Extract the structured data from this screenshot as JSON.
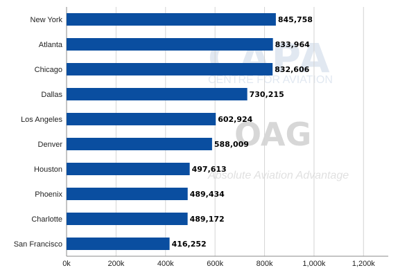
{
  "watermark": {
    "capa_logo_text": "CAPA",
    "capa_tagline": "CENTRE FOR AVIATION",
    "oag_logo_text": "OAG",
    "oag_tagline": "Absolute Aviation Advantage",
    "color": "#c9d6e6"
  },
  "chart_data": {
    "type": "bar",
    "orientation": "horizontal",
    "categories": [
      "New York",
      "Atlanta",
      "Chicago",
      "Dallas",
      "Los Angeles",
      "Denver",
      "Houston",
      "Phoenix",
      "Charlotte",
      "San Francisco"
    ],
    "values": [
      845758,
      833964,
      832606,
      730215,
      602924,
      588009,
      497613,
      489434,
      489172,
      416252
    ],
    "data_labels": [
      "845,758",
      "833,964",
      "832,606",
      "730,215",
      "602,924",
      "588,009",
      "497,613",
      "489,434",
      "489,172",
      "416,252"
    ],
    "x_ticks": [
      0,
      200000,
      400000,
      600000,
      800000,
      1000000,
      1200000
    ],
    "x_tick_labels": [
      "0k",
      "200k",
      "400k",
      "600k",
      "800k",
      "1,000k",
      "1,200k"
    ],
    "xlim": [
      0,
      1300000
    ],
    "grid": true,
    "legend": "none",
    "bar_color": "#0a4ea0",
    "title": "",
    "xlabel": "",
    "ylabel": ""
  }
}
